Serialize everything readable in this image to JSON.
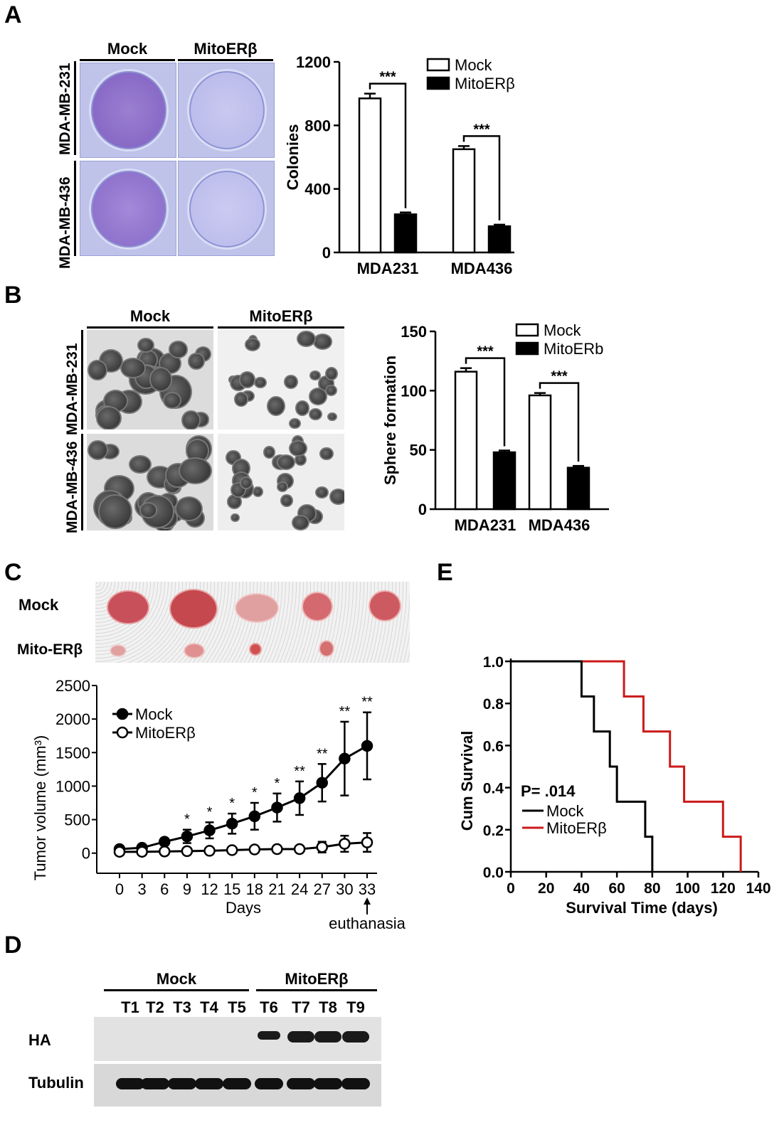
{
  "panels": {
    "A": "A",
    "B": "B",
    "C": "C",
    "D": "D",
    "E": "E"
  },
  "panelA": {
    "col_headers": [
      "Mock",
      "MitoERβ"
    ],
    "row_labels": [
      "MDA-MB-231",
      "MDA-MB-436"
    ]
  },
  "panelB": {
    "col_headers": [
      "Mock",
      "MitoERβ"
    ],
    "row_labels": [
      "MDA-MB-231",
      "MDA-MB-436"
    ]
  },
  "panelC": {
    "row_labels": [
      "Mock",
      "Mito-ERβ"
    ],
    "annotation": "euthanasia"
  },
  "panelD": {
    "group_headers": [
      "Mock",
      "MitoERβ"
    ],
    "lanes": [
      "T1",
      "T2",
      "T3",
      "T4",
      "T5",
      "T6",
      "T7",
      "T8",
      "T9"
    ],
    "row_labels": [
      "HA",
      "Tubulin"
    ]
  },
  "chart_data": [
    {
      "id": "A",
      "type": "bar",
      "categories": [
        "MDA231",
        "MDA436"
      ],
      "series": [
        {
          "name": "Mock",
          "values": [
            970,
            650
          ],
          "errors": [
            30,
            20
          ],
          "fill": "#ffffff"
        },
        {
          "name": "MitoERβ",
          "values": [
            240,
            165
          ],
          "errors": [
            12,
            10
          ],
          "fill": "#000000"
        }
      ],
      "ylabel": "Colonies",
      "ylim": [
        0,
        1200
      ],
      "yticks": [
        0,
        400,
        800,
        1200
      ],
      "significance": [
        "***",
        "***"
      ],
      "legend": "top-right"
    },
    {
      "id": "B",
      "type": "bar",
      "categories": [
        "MDA231",
        "MDA436"
      ],
      "series": [
        {
          "name": "Mock",
          "values": [
            116,
            96
          ],
          "errors": [
            3,
            2
          ],
          "fill": "#ffffff"
        },
        {
          "name": "MitoERb",
          "values": [
            48,
            35
          ],
          "errors": [
            1.5,
            1.5
          ],
          "fill": "#000000"
        }
      ],
      "ylabel": "Sphere formation",
      "ylim": [
        0,
        150
      ],
      "yticks": [
        0,
        50,
        100,
        150
      ],
      "significance": [
        "***",
        "***"
      ],
      "legend": "top-right"
    },
    {
      "id": "C",
      "type": "line",
      "x": [
        0,
        3,
        6,
        9,
        12,
        15,
        18,
        21,
        24,
        27,
        30,
        33
      ],
      "series": [
        {
          "name": "Mock",
          "values": [
            60,
            80,
            170,
            250,
            340,
            440,
            550,
            680,
            820,
            1050,
            1410,
            1600
          ],
          "errors": [
            20,
            30,
            50,
            100,
            120,
            150,
            200,
            210,
            250,
            280,
            550,
            500
          ],
          "marker": "filled"
        },
        {
          "name": "MitoERβ",
          "values": [
            20,
            20,
            25,
            30,
            35,
            45,
            55,
            60,
            60,
            90,
            140,
            160
          ],
          "errors": [
            5,
            5,
            5,
            10,
            10,
            15,
            15,
            20,
            20,
            80,
            120,
            140
          ],
          "marker": "open"
        }
      ],
      "xlabel": "Days",
      "ylabel": "Tumor volume (mm³)",
      "ylim": [
        -300,
        2500
      ],
      "yticks": [
        0,
        500,
        1000,
        1500,
        2000,
        2500
      ],
      "stars": {
        "9": "*",
        "12": "*",
        "15": "*",
        "18": "*",
        "21": "*",
        "24": "**",
        "27": "**",
        "30": "**",
        "33": "**"
      },
      "legend": "top-left"
    },
    {
      "id": "E",
      "type": "line",
      "series": [
        {
          "name": "Mock",
          "color": "#000000",
          "steps": [
            [
              0,
              1.0
            ],
            [
              40,
              1.0
            ],
            [
              40,
              0.833
            ],
            [
              47,
              0.833
            ],
            [
              47,
              0.667
            ],
            [
              56,
              0.667
            ],
            [
              56,
              0.5
            ],
            [
              60,
              0.5
            ],
            [
              60,
              0.333
            ],
            [
              76,
              0.333
            ],
            [
              76,
              0.167
            ],
            [
              80,
              0.167
            ],
            [
              80,
              0.0
            ]
          ]
        },
        {
          "name": "MitoERβ",
          "color": "#cc1a1a",
          "steps": [
            [
              0,
              1.0
            ],
            [
              64,
              1.0
            ],
            [
              64,
              0.833
            ],
            [
              75,
              0.833
            ],
            [
              75,
              0.667
            ],
            [
              90,
              0.667
            ],
            [
              90,
              0.5
            ],
            [
              98,
              0.5
            ],
            [
              98,
              0.333
            ],
            [
              120,
              0.333
            ],
            [
              120,
              0.167
            ],
            [
              130,
              0.167
            ],
            [
              130,
              0.0
            ]
          ]
        }
      ],
      "xlabel": "Survival Time (days)",
      "ylabel": "Cum Survival",
      "xlim": [
        0,
        140
      ],
      "xticks": [
        0,
        20,
        40,
        60,
        80,
        100,
        120,
        140
      ],
      "ylim": [
        0,
        1.0
      ],
      "yticks": [
        0.0,
        0.2,
        0.4,
        0.6,
        0.8,
        1.0
      ],
      "annotation": "P= .014",
      "legend": "bottom-left"
    }
  ]
}
